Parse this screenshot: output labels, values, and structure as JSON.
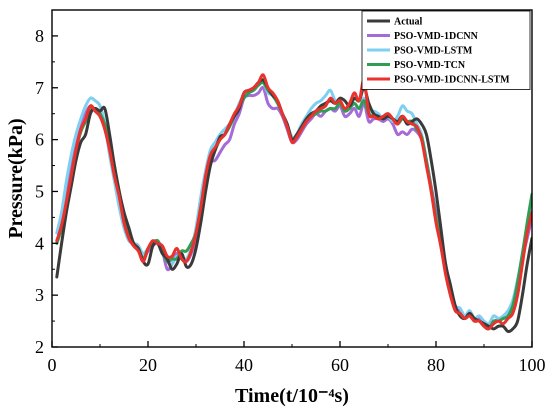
{
  "chart_data": {
    "type": "line",
    "xlabel": "Time(t/10⁻⁴s)",
    "ylabel": "Pressure(kPa)",
    "xlim": [
      0,
      100
    ],
    "ylim": [
      2,
      8.5
    ],
    "xticks": [
      0,
      20,
      40,
      60,
      80,
      100
    ],
    "yticks": [
      2,
      3,
      4,
      5,
      6,
      7,
      8
    ],
    "grid": false,
    "legend_position": "top-right",
    "x": [
      1,
      2,
      3,
      4,
      5,
      6,
      7,
      8,
      9,
      10,
      11,
      12,
      13,
      14,
      15,
      16,
      17,
      18,
      19,
      20,
      21,
      22,
      23,
      24,
      25,
      26,
      27,
      28,
      29,
      30,
      31,
      32,
      33,
      34,
      35,
      36,
      37,
      38,
      39,
      40,
      41,
      42,
      43,
      44,
      45,
      46,
      47,
      48,
      49,
      50,
      51,
      52,
      53,
      54,
      55,
      56,
      57,
      58,
      59,
      60,
      61,
      62,
      63,
      64,
      65,
      66,
      67,
      68,
      69,
      70,
      71,
      72,
      73,
      74,
      75,
      76,
      77,
      78,
      79,
      80,
      81,
      82,
      83,
      84,
      85,
      86,
      87,
      88,
      89,
      90,
      91,
      92,
      93,
      94,
      95,
      96,
      97,
      98,
      99,
      100
    ],
    "series": [
      {
        "name": "Actual",
        "color": "#3a3a3a",
        "values": [
          3.35,
          4.0,
          4.6,
          5.1,
          5.6,
          5.95,
          6.1,
          6.5,
          6.6,
          6.55,
          6.6,
          6.1,
          5.5,
          5.0,
          4.6,
          4.3,
          4.0,
          3.9,
          3.65,
          3.6,
          3.95,
          4.0,
          3.8,
          3.7,
          3.5,
          3.6,
          3.8,
          3.55,
          3.6,
          3.9,
          4.4,
          5.0,
          5.5,
          5.8,
          6.05,
          6.1,
          6.3,
          6.45,
          6.6,
          6.9,
          6.95,
          7.0,
          7.1,
          7.15,
          7.0,
          6.85,
          6.75,
          6.5,
          6.3,
          6.0,
          6.1,
          6.25,
          6.4,
          6.5,
          6.55,
          6.65,
          6.7,
          6.75,
          6.7,
          6.8,
          6.75,
          6.65,
          6.8,
          6.75,
          7.0,
          6.7,
          6.5,
          6.45,
          6.4,
          6.45,
          6.4,
          6.35,
          6.45,
          6.3,
          6.35,
          6.4,
          6.3,
          6.1,
          5.6,
          5.0,
          4.3,
          3.6,
          3.2,
          2.8,
          2.6,
          2.55,
          2.65,
          2.55,
          2.5,
          2.45,
          2.4,
          2.35,
          2.4,
          2.4,
          2.3,
          2.35,
          2.5,
          3.0,
          3.6,
          4.1
        ]
      },
      {
        "name": "PSO-VMD-1DCNN",
        "color": "#a56bd6",
        "values": [
          4.0,
          4.4,
          4.9,
          5.5,
          5.95,
          6.25,
          6.5,
          6.65,
          6.55,
          6.45,
          6.2,
          5.8,
          5.3,
          4.9,
          4.4,
          4.1,
          4.0,
          3.95,
          3.7,
          3.85,
          3.95,
          4.0,
          3.85,
          3.5,
          3.6,
          3.8,
          3.75,
          3.65,
          3.8,
          4.1,
          4.6,
          5.2,
          5.55,
          5.6,
          5.75,
          5.9,
          6.0,
          6.3,
          6.5,
          6.8,
          6.85,
          6.85,
          6.9,
          7.0,
          6.7,
          6.6,
          6.6,
          6.45,
          6.2,
          5.95,
          6.0,
          6.15,
          6.3,
          6.4,
          6.5,
          6.45,
          6.55,
          6.6,
          6.55,
          6.65,
          6.45,
          6.5,
          6.6,
          6.45,
          6.7,
          6.35,
          6.4,
          6.4,
          6.35,
          6.4,
          6.3,
          6.1,
          6.15,
          6.1,
          6.2,
          6.15,
          6.0,
          5.6,
          5.1,
          4.6,
          4.1,
          3.6,
          3.1,
          2.75,
          2.7,
          2.6,
          2.65,
          2.5,
          2.55,
          2.45,
          2.4,
          2.45,
          2.55,
          2.55,
          2.6,
          2.8,
          3.2,
          3.7,
          4.1,
          4.5
        ]
      },
      {
        "name": "PSO-VMD-LSTM",
        "color": "#7ecff2",
        "values": [
          4.2,
          4.6,
          5.2,
          5.7,
          6.1,
          6.4,
          6.65,
          6.8,
          6.75,
          6.65,
          6.3,
          5.7,
          5.2,
          4.7,
          4.3,
          4.05,
          4.0,
          3.95,
          3.8,
          3.9,
          4.0,
          4.05,
          3.9,
          3.65,
          3.6,
          3.75,
          3.7,
          3.7,
          3.9,
          4.3,
          4.9,
          5.4,
          5.8,
          5.95,
          6.1,
          6.2,
          6.3,
          6.45,
          6.7,
          6.85,
          6.9,
          7.0,
          7.05,
          7.1,
          6.9,
          6.85,
          6.7,
          6.5,
          6.3,
          6.05,
          6.1,
          6.3,
          6.45,
          6.6,
          6.7,
          6.75,
          6.85,
          6.95,
          6.75,
          6.7,
          6.6,
          6.65,
          6.7,
          6.6,
          6.8,
          6.55,
          6.55,
          6.5,
          6.4,
          6.45,
          6.35,
          6.45,
          6.65,
          6.55,
          6.5,
          6.3,
          6.1,
          5.6,
          5.0,
          4.5,
          4.0,
          3.5,
          3.1,
          2.8,
          2.75,
          2.6,
          2.7,
          2.55,
          2.6,
          2.5,
          2.45,
          2.6,
          2.55,
          2.6,
          2.7,
          2.9,
          3.3,
          3.8,
          4.3,
          4.8
        ]
      },
      {
        "name": "PSO-VMD-TCN",
        "color": "#2e9e55",
        "values": [
          4.0,
          4.3,
          4.8,
          5.3,
          5.8,
          6.15,
          6.35,
          6.55,
          6.6,
          6.5,
          6.3,
          5.95,
          5.5,
          5.0,
          4.55,
          4.2,
          4.0,
          3.9,
          3.7,
          3.9,
          4.0,
          4.05,
          3.85,
          3.65,
          3.7,
          3.7,
          3.85,
          3.85,
          4.0,
          4.2,
          4.7,
          5.2,
          5.6,
          5.8,
          6.0,
          6.1,
          6.25,
          6.45,
          6.65,
          6.8,
          6.9,
          6.95,
          7.05,
          7.1,
          6.95,
          6.85,
          6.7,
          6.5,
          6.25,
          6.0,
          6.05,
          6.2,
          6.35,
          6.45,
          6.5,
          6.55,
          6.55,
          6.6,
          6.6,
          6.7,
          6.55,
          6.6,
          6.7,
          6.6,
          6.75,
          6.5,
          6.45,
          6.45,
          6.4,
          6.5,
          6.4,
          6.3,
          6.4,
          6.35,
          6.35,
          6.2,
          6.05,
          5.6,
          5.05,
          4.5,
          3.95,
          3.45,
          3.0,
          2.75,
          2.65,
          2.55,
          2.6,
          2.5,
          2.5,
          2.4,
          2.35,
          2.5,
          2.5,
          2.55,
          2.6,
          2.8,
          3.25,
          3.8,
          4.4,
          4.95
        ]
      },
      {
        "name": "PSO-VMD-1DCNN-LSTM",
        "color": "#e8322b",
        "values": [
          4.05,
          4.35,
          4.8,
          5.3,
          5.8,
          6.2,
          6.4,
          6.65,
          6.55,
          6.45,
          6.2,
          5.8,
          5.3,
          4.9,
          4.4,
          4.1,
          3.95,
          3.85,
          3.65,
          3.9,
          4.05,
          4.0,
          3.95,
          3.75,
          3.75,
          3.9,
          3.7,
          3.65,
          3.85,
          4.2,
          4.7,
          5.3,
          5.7,
          5.85,
          6.0,
          6.1,
          6.3,
          6.5,
          6.65,
          6.9,
          6.95,
          7.0,
          7.1,
          7.25,
          7.0,
          6.9,
          6.75,
          6.5,
          6.25,
          5.95,
          6.05,
          6.2,
          6.35,
          6.45,
          6.55,
          6.6,
          6.65,
          6.8,
          6.7,
          6.75,
          6.6,
          6.7,
          6.9,
          6.75,
          7.15,
          6.5,
          6.45,
          6.4,
          6.45,
          6.5,
          6.4,
          6.3,
          6.45,
          6.35,
          6.3,
          6.25,
          6.0,
          5.5,
          5.0,
          4.4,
          3.95,
          3.4,
          3.0,
          2.7,
          2.65,
          2.55,
          2.6,
          2.5,
          2.5,
          2.4,
          2.35,
          2.45,
          2.5,
          2.45,
          2.55,
          2.65,
          3.0,
          3.6,
          4.2,
          4.6
        ]
      }
    ]
  }
}
